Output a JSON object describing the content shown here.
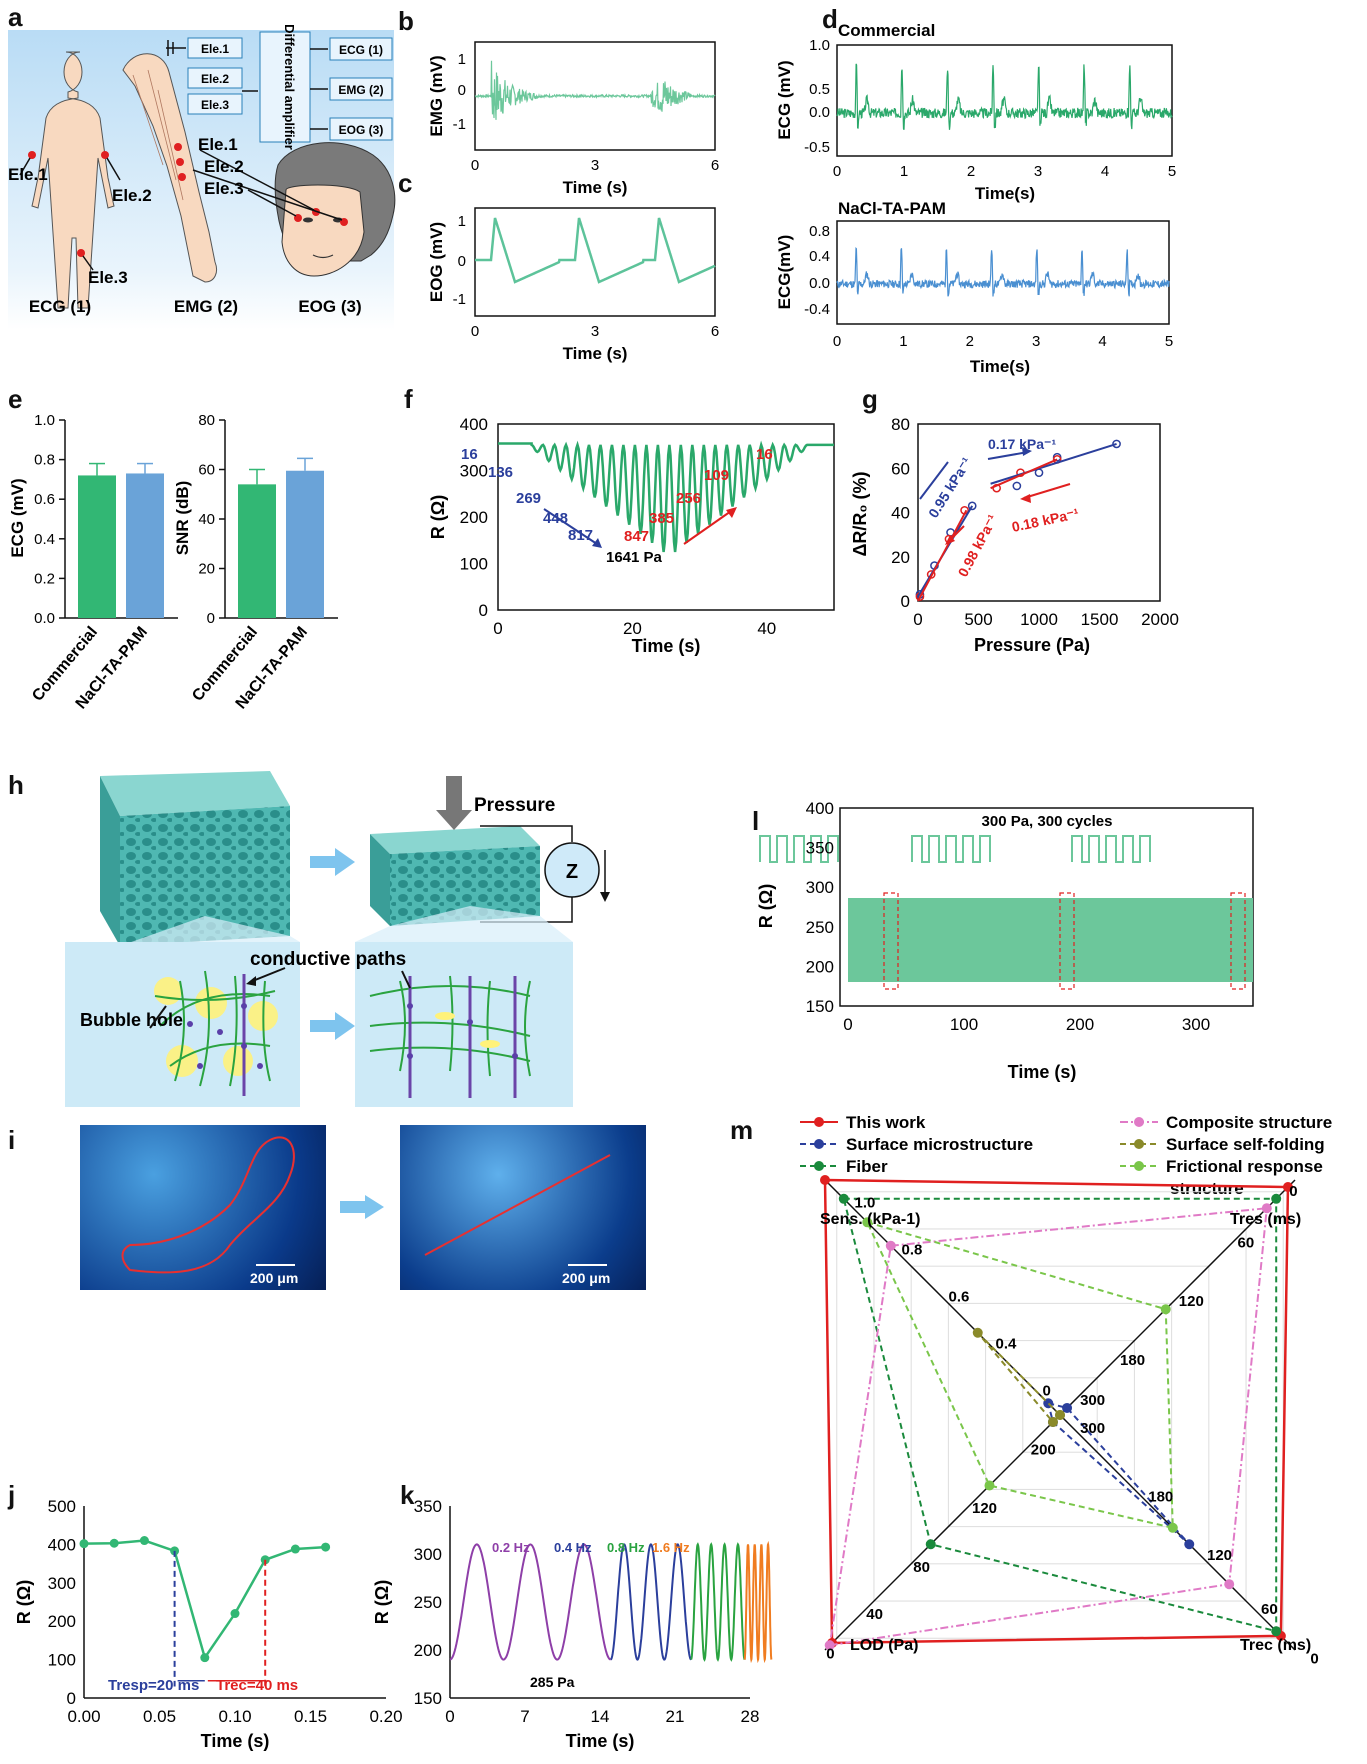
{
  "panels": {
    "a": {
      "letter": "a",
      "ele1": "Ele.1",
      "ele2": "Ele.2",
      "ele3": "Ele.3",
      "amp": "Differential amplifier",
      "out_ecg": "ECG (1)",
      "out_emg": "EMG (2)",
      "out_eog": "EOG (3)",
      "cap_ecg": "ECG (1)",
      "cap_emg": "EMG (2)",
      "cap_eog": "EOG (3)"
    },
    "b": {
      "letter": "b",
      "ylabel": "EMG (mV)",
      "xlabel": "Time (s)",
      "xticks": [
        "0",
        "3",
        "6"
      ],
      "yticks": [
        "1",
        "0",
        "-1"
      ]
    },
    "c": {
      "letter": "c",
      "ylabel": "EOG (mV)",
      "xlabel": "Time (s)",
      "xticks": [
        "0",
        "3",
        "6"
      ],
      "yticks": [
        "1",
        "0",
        "-1"
      ]
    },
    "d": {
      "letter": "d",
      "title1": "Commercial",
      "title2": "NaCl-TA-PAM",
      "ylabel1": "ECG (mV)",
      "ylabel2": "ECG(mV)",
      "xlabel": "Time(s)",
      "xticks": [
        "0",
        "1",
        "2",
        "3",
        "4",
        "5"
      ],
      "yticks1": [
        "1.0",
        "0.5",
        "0.0",
        "-0.5"
      ],
      "yticks2": [
        "0.8",
        "0.4",
        "0.0",
        "-0.4"
      ]
    },
    "e": {
      "letter": "e",
      "ylabel1": "ECG (mV)",
      "ylabel2": "SNR (dB)",
      "cat1": "Commercial",
      "cat2": "NaCl-TA-PAM",
      "yticks1": [
        "1.0",
        "0.8",
        "0.6",
        "0.4",
        "0.2",
        "0.0"
      ],
      "yticks2": [
        "80",
        "60",
        "40",
        "20",
        "0"
      ]
    },
    "f": {
      "letter": "f",
      "ylabel": "R (Ω)",
      "xlabel": "Time (s)",
      "xticks": [
        "0",
        "20",
        "40"
      ],
      "yticks": [
        "400",
        "300",
        "200",
        "100",
        "0"
      ],
      "blue_labels": [
        "16",
        "136",
        "269",
        "448",
        "817"
      ],
      "peak": "1641 Pa",
      "red_labels": [
        "847",
        "385",
        "256",
        "109",
        "16"
      ]
    },
    "g": {
      "letter": "g",
      "ylabel": "ΔR/R₀ (%)",
      "xlabel": "Pressure (Pa)",
      "xticks": [
        "0",
        "500",
        "1000",
        "1500",
        "2000"
      ],
      "yticks": [
        "80",
        "60",
        "40",
        "20",
        "0"
      ],
      "s1": "0.95 kPa⁻¹",
      "s2": "0.17 kPa⁻¹",
      "s3": "0.98 kPa⁻¹",
      "s4": "0.18 kPa⁻¹"
    },
    "h": {
      "letter": "h",
      "pressure": "Pressure",
      "z": "Z",
      "paths": "conductive paths",
      "bubble": "Bubble hole"
    },
    "i": {
      "letter": "i",
      "scale": "200 μm"
    },
    "j": {
      "letter": "j",
      "ylabel": "R (Ω)",
      "xlabel": "Time (s)",
      "xticks": [
        "0.00",
        "0.05",
        "0.10",
        "0.15",
        "0.20"
      ],
      "yticks": [
        "500",
        "400",
        "300",
        "200",
        "100",
        "0"
      ],
      "tresp": "Tresp=20 ms",
      "trec": "Trec=40 ms"
    },
    "k": {
      "letter": "k",
      "ylabel": "R (Ω)",
      "xlabel": "Time (s)",
      "xticks": [
        "0",
        "7",
        "14",
        "21",
        "28"
      ],
      "yticks": [
        "350",
        "300",
        "250",
        "200",
        "150"
      ],
      "f1": "0.2 Hz",
      "f2": "0.4 Hz",
      "f3": "0.8 Hz",
      "f4": "1.6 Hz",
      "pa": "285 Pa"
    },
    "l": {
      "letter": "l",
      "ylabel": "R (Ω)",
      "xlabel": "Time (s)",
      "xticks": [
        "0",
        "100",
        "200",
        "300"
      ],
      "yticks": [
        "400",
        "350",
        "300",
        "250",
        "200",
        "150"
      ],
      "title": "300 Pa, 300 cycles"
    },
    "m": {
      "letter": "m",
      "legend": [
        "This work",
        "Surface microstructure",
        "Fiber",
        "Composite structure",
        "Surface self-folding",
        "Frictional response structure"
      ],
      "sens": "Sens. (kPa-1)",
      "tres": "Tres (ms)",
      "lod": "LOD (Pa)",
      "trec": "Trec (ms)"
    }
  },
  "chart_data": [
    {
      "type": "bar",
      "panel": "e-left",
      "categories": [
        "Commercial",
        "NaCl-TA-PAM"
      ],
      "values": [
        0.72,
        0.73
      ],
      "errors": [
        0.06,
        0.05
      ],
      "ylabel": "ECG (mV)",
      "ylim": [
        0,
        1.0
      ]
    },
    {
      "type": "bar",
      "panel": "e-right",
      "categories": [
        "Commercial",
        "NaCl-TA-PAM"
      ],
      "values": [
        54,
        59.5
      ],
      "errors": [
        6,
        5
      ],
      "ylabel": "SNR (dB)",
      "ylim": [
        0,
        80
      ]
    },
    {
      "type": "scatter",
      "panel": "g",
      "xlabel": "Pressure (Pa)",
      "ylabel": "ΔR/R0 (%)",
      "xlim": [
        0,
        2000
      ],
      "ylim": [
        0,
        80
      ],
      "series": [
        {
          "name": "loading",
          "x": [
            16,
            136,
            269,
            448,
            817,
            1641,
            1000,
            1150
          ],
          "y": [
            3,
            16,
            31,
            43,
            52,
            71,
            58,
            65
          ]
        },
        {
          "name": "unloading",
          "x": [
            16,
            109,
            256,
            385,
            650,
            847,
            1150
          ],
          "y": [
            2,
            12,
            28,
            41,
            51,
            58,
            64
          ]
        }
      ]
    },
    {
      "type": "line",
      "panel": "j",
      "xlabel": "Time (s)",
      "ylabel": "R (Ω)",
      "xlim": [
        0,
        0.2
      ],
      "ylim": [
        0,
        500
      ],
      "x": [
        0,
        0.02,
        0.04,
        0.06,
        0.08,
        0.1,
        0.12,
        0.14,
        0.16
      ],
      "y": [
        402,
        403,
        410,
        383,
        105,
        220,
        360,
        388,
        393
      ]
    }
  ]
}
